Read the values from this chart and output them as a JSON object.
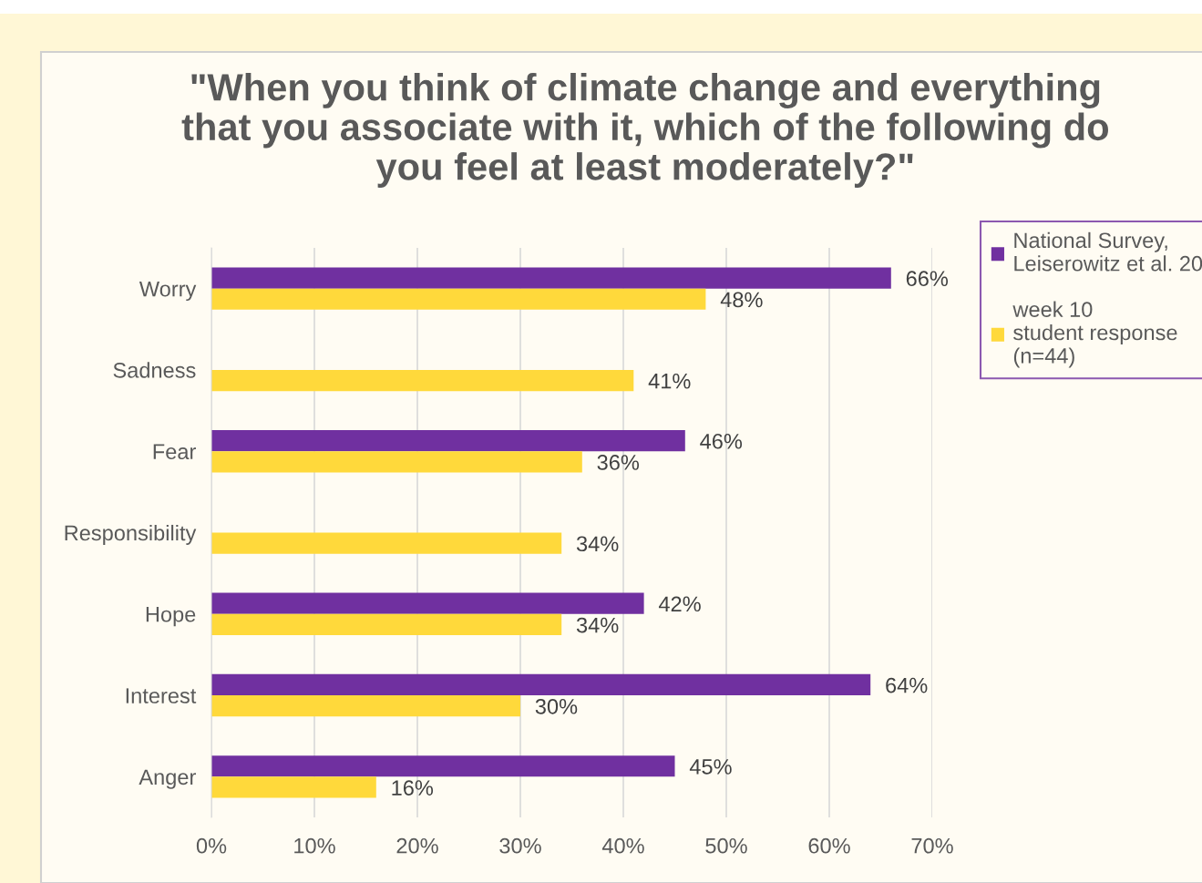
{
  "chart_data": {
    "type": "bar",
    "orientation": "horizontal",
    "title": "\"When you think of climate change and everything\nthat you associate with it, which of the following do\nyou feel at least moderately?\"",
    "categories": [
      "Worry",
      "Sadness",
      "Fear",
      "Responsibility",
      "Hope",
      "Interest",
      "Anger"
    ],
    "series": [
      {
        "name": "National Survey,\nLeiserowitz et al. 20",
        "color": "#7030a0",
        "values": [
          66,
          null,
          46,
          null,
          42,
          64,
          45
        ],
        "value_labels": [
          "66%",
          null,
          "46%",
          null,
          "42%",
          "64%",
          "45%"
        ]
      },
      {
        "name": "week 10\nstudent response\n(n=44)",
        "color": "#ffd93b",
        "values": [
          48,
          41,
          36,
          34,
          34,
          30,
          16
        ],
        "value_labels": [
          "48%",
          "41%",
          "36%",
          "34%",
          "34%",
          "30%",
          "16%"
        ]
      }
    ],
    "xlim": [
      0,
      70
    ],
    "xticks": [
      {
        "value": 0,
        "label": "0%"
      },
      {
        "value": 10,
        "label": "10%"
      },
      {
        "value": 20,
        "label": "20%"
      },
      {
        "value": 30,
        "label": "30%"
      },
      {
        "value": 40,
        "label": "40%"
      },
      {
        "value": 50,
        "label": "50%"
      },
      {
        "value": 60,
        "label": "60%"
      },
      {
        "value": 70,
        "label": "70%"
      }
    ],
    "grid": "x",
    "legend": "top right"
  }
}
